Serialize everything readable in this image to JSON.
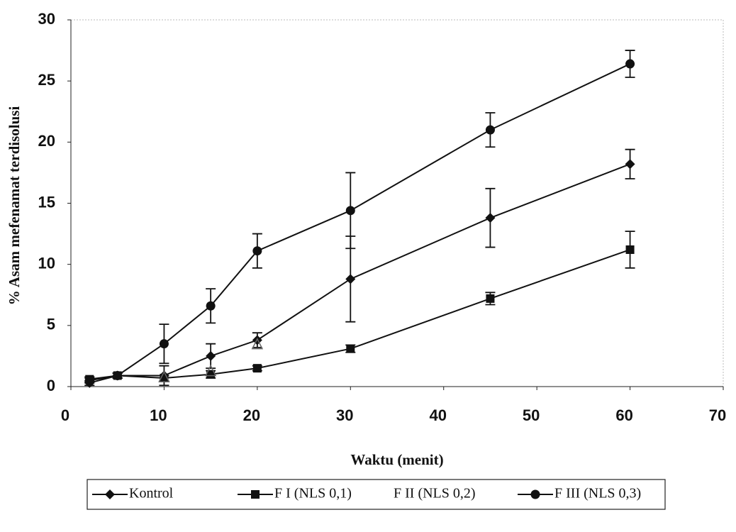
{
  "chart_data": {
    "type": "line",
    "x_label": "Waktu (menit)",
    "y_label": "% Asam mefenamat terdisolusi",
    "x": [
      2,
      5,
      10,
      15,
      20,
      30,
      45,
      60
    ],
    "xlim": [
      0,
      70
    ],
    "xticks": [
      0,
      10,
      20,
      30,
      40,
      50,
      60,
      70
    ],
    "ylim": [
      0,
      30
    ],
    "yticks": [
      0,
      5,
      10,
      15,
      20,
      25,
      30
    ],
    "series": [
      {
        "name": "Kontrol",
        "color": "#111111",
        "marker": "diamond",
        "line": true,
        "values": [
          0.3,
          0.9,
          0.9,
          2.5,
          3.8,
          8.8,
          13.8,
          18.2
        ],
        "errors": [
          0.2,
          0.2,
          0.8,
          1.0,
          0.6,
          3.5,
          2.4,
          1.2
        ]
      },
      {
        "name": "F I (NLS 0,1)",
        "color": "#111111",
        "marker": "square",
        "line": true,
        "values": [
          0.6,
          0.9,
          0.7,
          1.0,
          1.5,
          3.1,
          7.2,
          11.2
        ],
        "errors": [
          0.2,
          0.2,
          0.2,
          0.3,
          0.2,
          0.3,
          0.5,
          1.5
        ]
      },
      {
        "name": "F II (NLS 0,2)",
        "color": "#666666",
        "marker": "triangle",
        "line": false,
        "values": [
          null,
          null,
          0.8,
          1.3,
          3.5,
          null,
          null,
          null
        ]
      },
      {
        "name": "F III (NLS 0,3)",
        "color": "#111111",
        "marker": "circle",
        "line": true,
        "values": [
          0.5,
          0.9,
          3.5,
          6.6,
          11.1,
          14.4,
          21.0,
          26.4
        ],
        "errors": [
          0.2,
          0.2,
          1.6,
          1.4,
          1.4,
          3.1,
          1.4,
          1.1
        ]
      }
    ]
  }
}
